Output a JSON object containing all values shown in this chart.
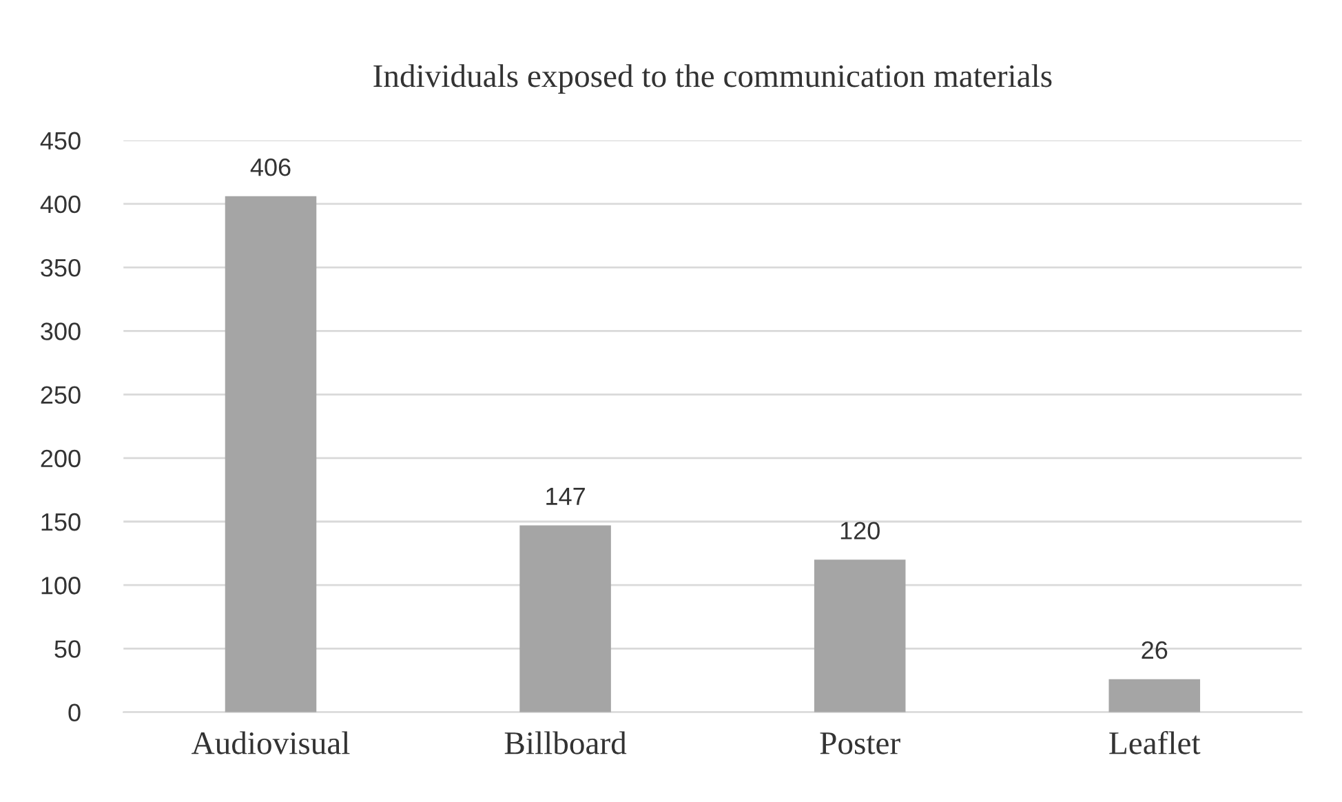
{
  "chart_data": {
    "type": "bar",
    "title": "Individuals exposed to the communication materials",
    "categories": [
      "Audiovisual",
      "Billboard",
      "Poster",
      "Leaflet"
    ],
    "values": [
      406,
      147,
      120,
      26
    ],
    "color": "#a5a5a5",
    "ylim": [
      0,
      450
    ],
    "yticks": [
      0,
      50,
      100,
      150,
      200,
      250,
      300,
      350,
      400,
      450
    ],
    "grid": "y",
    "data_labels": true
  }
}
